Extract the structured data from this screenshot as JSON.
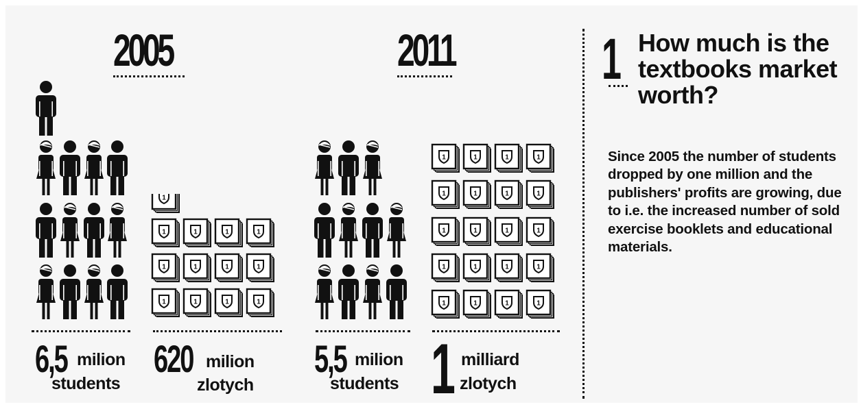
{
  "panel_2005": {
    "year": "2005",
    "students": {
      "number": "6,5",
      "unit_line1": "milion",
      "unit_line2": "students",
      "icon_count": 13,
      "icon_name": "person-icon"
    },
    "money": {
      "number": "620",
      "unit_line1": "milion",
      "unit_line2": "zlotych",
      "book_count": 12.2,
      "icon_name": "textbook-icon"
    }
  },
  "panel_2011": {
    "year": "2011",
    "students": {
      "number": "5,5",
      "unit_line1": "milion",
      "unit_line2": "students",
      "icon_count": 11,
      "icon_name": "person-icon"
    },
    "money": {
      "number": "1",
      "unit_line1": "milliard",
      "unit_line2": "zlotych",
      "book_count": 20,
      "icon_name": "textbook-icon"
    }
  },
  "question": {
    "number": "1",
    "title": "How much is the textbooks market worth?",
    "body": "Since 2005 the number of students dropped by one million and the publishers' profits are growing, due to i.e. the increased number of sold exercise booklets and educational materials."
  },
  "book_label": "1",
  "colors": {
    "ink": "#111111",
    "panel": "#f6f6f6",
    "book_paper": "#ffffff"
  }
}
